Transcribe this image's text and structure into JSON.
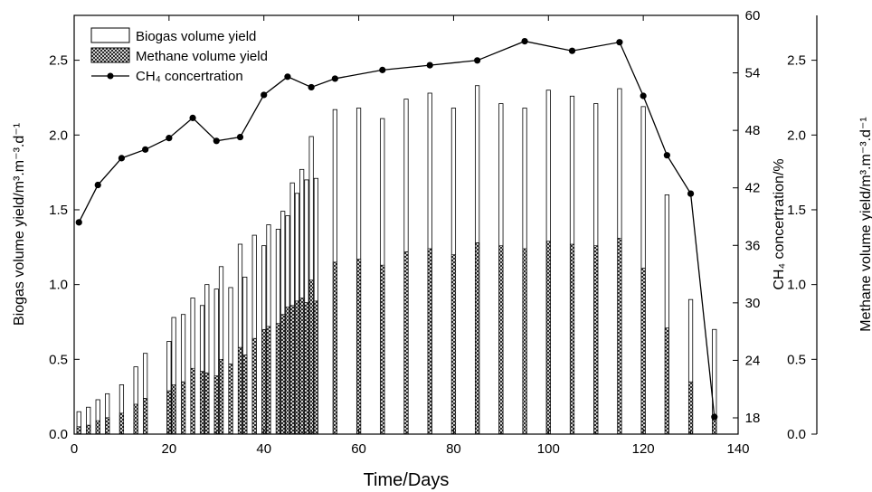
{
  "chart_data": {
    "type": "bar",
    "xlabel": "Time/Days",
    "ylabel_left": "Biogas volume yield/m³.m⁻³.d⁻¹",
    "ylabel_mid": "CH₄ concertration/%",
    "ylabel_right": "Methane volume yield/m³.m⁻³.d⁻¹",
    "xlim": [
      0,
      140
    ],
    "x_ticks": [
      0,
      20,
      40,
      60,
      80,
      100,
      120,
      140
    ],
    "ylim_left": [
      0,
      2.8
    ],
    "y_ticks_left": [
      0.0,
      0.5,
      1.0,
      1.5,
      2.0,
      2.5
    ],
    "ylim_mid": [
      16.3,
      60
    ],
    "y_ticks_mid": [
      18,
      24,
      30,
      36,
      42,
      48,
      54,
      60
    ],
    "ylim_right": [
      0,
      2.8
    ],
    "y_ticks_right": [
      0.0,
      0.5,
      1.0,
      1.5,
      2.0,
      2.5
    ],
    "x_tick_labels": [
      "0",
      "20",
      "40",
      "60",
      "80",
      "100",
      "120",
      "140"
    ],
    "y_tick_labels_left": [
      "0.0",
      "0.5",
      "1.0",
      "1.5",
      "2.0",
      "2.5"
    ],
    "y_tick_labels_mid": [
      "18",
      "24",
      "30",
      "36",
      "42",
      "48",
      "54",
      "60"
    ],
    "y_tick_labels_right": [
      "0.0",
      "0.5",
      "1.0",
      "1.5",
      "2.0",
      "2.5"
    ],
    "legend_position": "top-left",
    "legend": [
      "Biogas volume  yield",
      "Methane volume  yield",
      "CH₄ concertration"
    ],
    "series": [
      {
        "name": "Biogas volume  yield",
        "type": "bar",
        "axis": "left",
        "style": "hollow",
        "points": [
          [
            1,
            0.15
          ],
          [
            3,
            0.18
          ],
          [
            5,
            0.23
          ],
          [
            7,
            0.27
          ],
          [
            10,
            0.33
          ],
          [
            13,
            0.45
          ],
          [
            15,
            0.54
          ],
          [
            20,
            0.62
          ],
          [
            21,
            0.78
          ],
          [
            23,
            0.8
          ],
          [
            25,
            0.91
          ],
          [
            27,
            0.86
          ],
          [
            28,
            1.0
          ],
          [
            30,
            0.97
          ],
          [
            31,
            1.12
          ],
          [
            33,
            0.98
          ],
          [
            35,
            1.27
          ],
          [
            36,
            1.05
          ],
          [
            38,
            1.33
          ],
          [
            40,
            1.26
          ],
          [
            41,
            1.4
          ],
          [
            43,
            1.37
          ],
          [
            44,
            1.49
          ],
          [
            45,
            1.46
          ],
          [
            46,
            1.68
          ],
          [
            47,
            1.61
          ],
          [
            48,
            1.77
          ],
          [
            49,
            1.7
          ],
          [
            50,
            1.99
          ],
          [
            51,
            1.71
          ],
          [
            55,
            2.17
          ],
          [
            60,
            2.18
          ],
          [
            65,
            2.11
          ],
          [
            70,
            2.24
          ],
          [
            75,
            2.28
          ],
          [
            80,
            2.18
          ],
          [
            85,
            2.33
          ],
          [
            90,
            2.21
          ],
          [
            95,
            2.18
          ],
          [
            100,
            2.3
          ],
          [
            105,
            2.26
          ],
          [
            110,
            2.21
          ],
          [
            115,
            2.31
          ],
          [
            120,
            2.19
          ],
          [
            125,
            1.6
          ],
          [
            130,
            0.9
          ],
          [
            135,
            0.7
          ]
        ]
      },
      {
        "name": "Methane volume  yield",
        "type": "bar",
        "axis": "right",
        "style": "crosshatch",
        "points": [
          [
            1,
            0.05
          ],
          [
            3,
            0.06
          ],
          [
            5,
            0.09
          ],
          [
            7,
            0.11
          ],
          [
            10,
            0.14
          ],
          [
            13,
            0.2
          ],
          [
            15,
            0.24
          ],
          [
            20,
            0.29
          ],
          [
            21,
            0.33
          ],
          [
            23,
            0.35
          ],
          [
            25,
            0.44
          ],
          [
            27,
            0.42
          ],
          [
            28,
            0.41
          ],
          [
            30,
            0.39
          ],
          [
            31,
            0.5
          ],
          [
            33,
            0.47
          ],
          [
            35,
            0.58
          ],
          [
            36,
            0.53
          ],
          [
            38,
            0.64
          ],
          [
            40,
            0.7
          ],
          [
            41,
            0.72
          ],
          [
            43,
            0.74
          ],
          [
            44,
            0.8
          ],
          [
            45,
            0.85
          ],
          [
            46,
            0.86
          ],
          [
            47,
            0.89
          ],
          [
            48,
            0.91
          ],
          [
            49,
            0.88
          ],
          [
            50,
            1.03
          ],
          [
            51,
            0.89
          ],
          [
            55,
            1.15
          ],
          [
            60,
            1.17
          ],
          [
            65,
            1.13
          ],
          [
            70,
            1.22
          ],
          [
            75,
            1.24
          ],
          [
            80,
            1.2
          ],
          [
            85,
            1.28
          ],
          [
            90,
            1.26
          ],
          [
            95,
            1.24
          ],
          [
            100,
            1.29
          ],
          [
            105,
            1.27
          ],
          [
            110,
            1.26
          ],
          [
            115,
            1.31
          ],
          [
            120,
            1.11
          ],
          [
            125,
            0.71
          ],
          [
            130,
            0.35
          ],
          [
            135,
            0.12
          ]
        ]
      },
      {
        "name": "CH₄ concertration",
        "type": "line",
        "axis": "mid",
        "marker": "circle",
        "points": [
          [
            1,
            38.4
          ],
          [
            5,
            42.3
          ],
          [
            10,
            45.1
          ],
          [
            15,
            46.0
          ],
          [
            20,
            47.2
          ],
          [
            25,
            49.3
          ],
          [
            30,
            46.9
          ],
          [
            35,
            47.3
          ],
          [
            40,
            51.7
          ],
          [
            45,
            53.6
          ],
          [
            50,
            52.5
          ],
          [
            55,
            53.4
          ],
          [
            65,
            54.3
          ],
          [
            75,
            54.8
          ],
          [
            85,
            55.3
          ],
          [
            95,
            57.3
          ],
          [
            105,
            56.3
          ],
          [
            115,
            57.2
          ],
          [
            120,
            51.6
          ],
          [
            125,
            45.4
          ],
          [
            130,
            41.4
          ],
          [
            135,
            18.1
          ]
        ]
      }
    ]
  }
}
